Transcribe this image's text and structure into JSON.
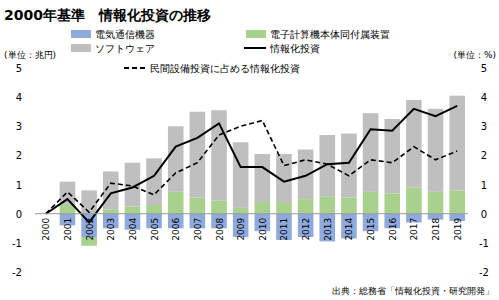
{
  "chart_data": {
    "type": "bar",
    "title": "2000年基準　情報化投資の推移",
    "y_label": "(単位：兆円)",
    "y2_label": "(単位：%)",
    "source": "出典：総務省「情報化投資・研究開発」",
    "categories": [
      "2000",
      "2001",
      "2002",
      "2003",
      "2004",
      "2005",
      "2006",
      "2007",
      "2008",
      "2009",
      "2010",
      "2011",
      "2012",
      "2013",
      "2014",
      "2015",
      "2016",
      "2017",
      "2018",
      "2019"
    ],
    "stacked": true,
    "grid": false,
    "legend": "top",
    "ylim": [
      -2,
      5
    ],
    "yticks": [
      -2,
      -1,
      0,
      1,
      2,
      3,
      4,
      5
    ],
    "y2lim": [
      -2,
      5
    ],
    "y2ticks": [
      -2,
      -1,
      0,
      1,
      2,
      3,
      4,
      5
    ],
    "series": [
      {
        "name": "電気通信機器",
        "type": "bar",
        "color": "#8faadc",
        "values": [
          0,
          -0.4,
          -0.8,
          -0.5,
          -0.55,
          -0.5,
          -0.5,
          -0.5,
          -0.5,
          -0.8,
          -0.6,
          -0.9,
          -0.8,
          -0.95,
          -0.85,
          -0.6,
          -0.5,
          -0.3,
          -0.2,
          -0.25
        ]
      },
      {
        "name": "電子計算機本体同付属装置",
        "type": "bar",
        "color": "#a9d18e",
        "values": [
          0,
          0.3,
          -0.3,
          0.15,
          0.25,
          0.3,
          0.75,
          0.55,
          0.45,
          0.2,
          0.4,
          0.4,
          0.5,
          0.6,
          0.55,
          0.75,
          0.7,
          0.9,
          0.75,
          0.8
        ]
      },
      {
        "name": "ソフトウェア",
        "type": "bar",
        "color": "#bfbfbf",
        "values": [
          0,
          0.8,
          0.8,
          1.3,
          1.5,
          1.6,
          2.25,
          2.95,
          3.1,
          2.25,
          1.65,
          1.65,
          1.7,
          2.1,
          2.2,
          2.7,
          2.55,
          3.0,
          2.85,
          3.25
        ]
      },
      {
        "name": "情報化投資",
        "type": "line",
        "color": "#000000",
        "line_style": "solid",
        "values": [
          0,
          0.5,
          -0.3,
          0.7,
          0.9,
          1.3,
          2.3,
          2.6,
          3.1,
          1.6,
          1.6,
          1.1,
          1.3,
          1.7,
          1.75,
          2.9,
          2.85,
          3.6,
          3.35,
          3.7
        ]
      },
      {
        "name": "民間設備投資に占める情報化投資",
        "type": "line",
        "axis": "y2",
        "color": "#000000",
        "line_style": "dashed",
        "values": [
          0,
          0.75,
          0.05,
          1.05,
          0.95,
          0.65,
          1.4,
          1.75,
          2.7,
          3.0,
          3.2,
          1.65,
          1.85,
          1.7,
          1.3,
          1.85,
          1.75,
          2.3,
          1.85,
          2.15
        ]
      }
    ]
  }
}
